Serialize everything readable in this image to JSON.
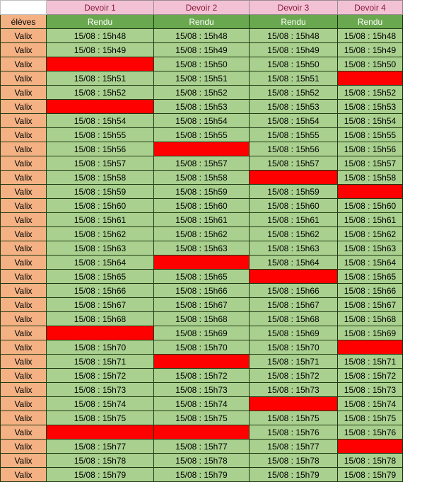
{
  "header": {
    "assignments": [
      "Devoir 1",
      "Devoir 2",
      "Devoir 3",
      "Devoir 4"
    ],
    "students_label": "élèves",
    "submitted_label": "Rendu"
  },
  "colors": {
    "header_pink": "#f2c2d4",
    "header_green": "#6aa84f",
    "student_orange": "#f4b183",
    "submitted_green": "#a9d08e",
    "missing_red": "#ff0000"
  },
  "rows": [
    {
      "student": "Valix",
      "cells": [
        "15/08 : 15h48",
        "15/08 : 15h48",
        "15/08 : 15h48",
        "15/08 : 15h48"
      ]
    },
    {
      "student": "Valix",
      "cells": [
        "15/08 : 15h49",
        "15/08 : 15h49",
        "15/08 : 15h49",
        "15/08 : 15h49"
      ]
    },
    {
      "student": "Valix",
      "cells": [
        null,
        "15/08 : 15h50",
        "15/08 : 15h50",
        "15/08 : 15h50"
      ]
    },
    {
      "student": "Valix",
      "cells": [
        "15/08 : 15h51",
        "15/08 : 15h51",
        "15/08 : 15h51",
        null
      ]
    },
    {
      "student": "Valix",
      "cells": [
        "15/08 : 15h52",
        "15/08 : 15h52",
        "15/08 : 15h52",
        "15/08 : 15h52"
      ]
    },
    {
      "student": "Valix",
      "cells": [
        null,
        "15/08 : 15h53",
        "15/08 : 15h53",
        "15/08 : 15h53"
      ]
    },
    {
      "student": "Valix",
      "cells": [
        "15/08 : 15h54",
        "15/08 : 15h54",
        "15/08 : 15h54",
        "15/08 : 15h54"
      ]
    },
    {
      "student": "Valix",
      "cells": [
        "15/08 : 15h55",
        "15/08 : 15h55",
        "15/08 : 15h55",
        "15/08 : 15h55"
      ]
    },
    {
      "student": "Valix",
      "cells": [
        "15/08 : 15h56",
        null,
        "15/08 : 15h56",
        "15/08 : 15h56"
      ]
    },
    {
      "student": "Valix",
      "cells": [
        "15/08 : 15h57",
        "15/08 : 15h57",
        "15/08 : 15h57",
        "15/08 : 15h57"
      ]
    },
    {
      "student": "Valix",
      "cells": [
        "15/08 : 15h58",
        "15/08 : 15h58",
        null,
        "15/08 : 15h58"
      ]
    },
    {
      "student": "Valix",
      "cells": [
        "15/08 : 15h59",
        "15/08 : 15h59",
        "15/08 : 15h59",
        null
      ]
    },
    {
      "student": "Valix",
      "cells": [
        "15/08 : 15h60",
        "15/08 : 15h60",
        "15/08 : 15h60",
        "15/08 : 15h60"
      ]
    },
    {
      "student": "Valix",
      "cells": [
        "15/08 : 15h61",
        "15/08 : 15h61",
        "15/08 : 15h61",
        "15/08 : 15h61"
      ]
    },
    {
      "student": "Valix",
      "cells": [
        "15/08 : 15h62",
        "15/08 : 15h62",
        "15/08 : 15h62",
        "15/08 : 15h62"
      ]
    },
    {
      "student": "Valix",
      "cells": [
        "15/08 : 15h63",
        "15/08 : 15h63",
        "15/08 : 15h63",
        "15/08 : 15h63"
      ]
    },
    {
      "student": "Valix",
      "cells": [
        "15/08 : 15h64",
        null,
        "15/08 : 15h64",
        "15/08 : 15h64"
      ]
    },
    {
      "student": "Valix",
      "cells": [
        "15/08 : 15h65",
        "15/08 : 15h65",
        null,
        "15/08 : 15h65"
      ]
    },
    {
      "student": "Valix",
      "cells": [
        "15/08 : 15h66",
        "15/08 : 15h66",
        "15/08 : 15h66",
        "15/08 : 15h66"
      ]
    },
    {
      "student": "Valix",
      "cells": [
        "15/08 : 15h67",
        "15/08 : 15h67",
        "15/08 : 15h67",
        "15/08 : 15h67"
      ]
    },
    {
      "student": "Valix",
      "cells": [
        "15/08 : 15h68",
        "15/08 : 15h68",
        "15/08 : 15h68",
        "15/08 : 15h68"
      ]
    },
    {
      "student": "Valix",
      "cells": [
        null,
        "15/08 : 15h69",
        "15/08 : 15h69",
        "15/08 : 15h69"
      ]
    },
    {
      "student": "Valix",
      "cells": [
        "15/08 : 15h70",
        "15/08 : 15h70",
        "15/08 : 15h70",
        null
      ]
    },
    {
      "student": "Valix",
      "cells": [
        "15/08 : 15h71",
        null,
        "15/08 : 15h71",
        "15/08 : 15h71"
      ]
    },
    {
      "student": "Valix",
      "cells": [
        "15/08 : 15h72",
        "15/08 : 15h72",
        "15/08 : 15h72",
        "15/08 : 15h72"
      ]
    },
    {
      "student": "Valix",
      "cells": [
        "15/08 : 15h73",
        "15/08 : 15h73",
        "15/08 : 15h73",
        "15/08 : 15h73"
      ]
    },
    {
      "student": "Valix",
      "cells": [
        "15/08 : 15h74",
        "15/08 : 15h74",
        null,
        "15/08 : 15h74"
      ]
    },
    {
      "student": "Valix",
      "cells": [
        "15/08 : 15h75",
        "15/08 : 15h75",
        "15/08 : 15h75",
        "15/08 : 15h75"
      ]
    },
    {
      "student": "Valix",
      "cells": [
        null,
        null,
        "15/08 : 15h76",
        "15/08 : 15h76"
      ]
    },
    {
      "student": "Valix",
      "cells": [
        "15/08 : 15h77",
        "15/08 : 15h77",
        "15/08 : 15h77",
        null
      ]
    },
    {
      "student": "Valix",
      "cells": [
        "15/08 : 15h78",
        "15/08 : 15h78",
        "15/08 : 15h78",
        "15/08 : 15h78"
      ]
    },
    {
      "student": "Valix",
      "cells": [
        "15/08 : 15h79",
        "15/08 : 15h79",
        "15/08 : 15h79",
        "15/08 : 15h79"
      ]
    }
  ]
}
